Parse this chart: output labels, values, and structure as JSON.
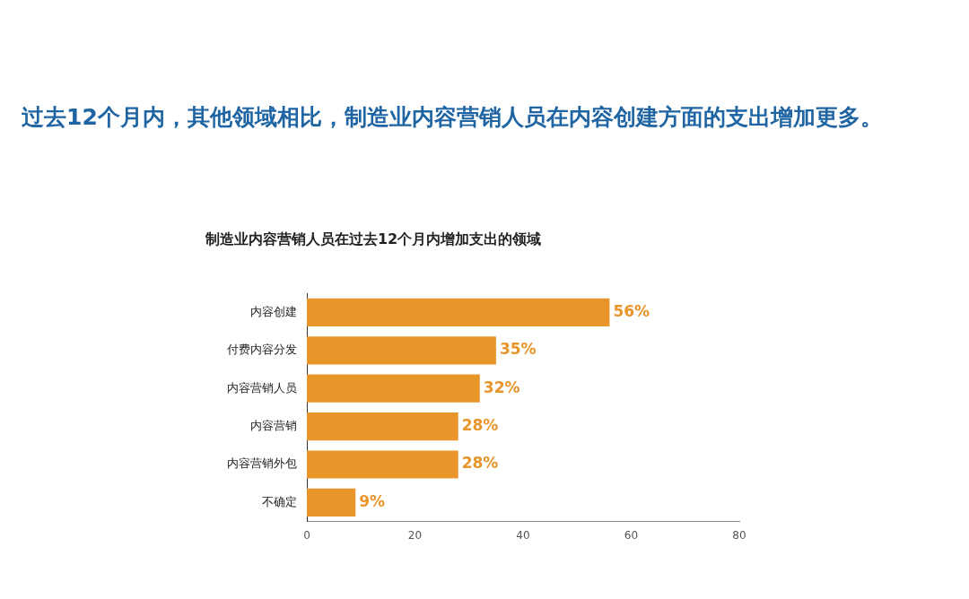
{
  "chart_data": {
    "type": "bar",
    "orientation": "horizontal",
    "title": "制造业内容营销人员在过去12个月内增加支出的领域",
    "subtitle": "过去12个月内，其他领域相比，制造业内容营销人员在内容创建方面的支出增加更多。",
    "categories": [
      "内容创建",
      "付费内容分发",
      "内容营销人员",
      "内容营销",
      "内容营销外包",
      "不确定"
    ],
    "values": [
      56,
      35,
      32,
      28,
      28,
      9
    ],
    "color": "#e8952a",
    "value_labels": [
      "56%",
      "35%",
      "32%",
      "28%",
      "28%",
      "9%"
    ],
    "xlim": [
      0,
      80
    ],
    "xticks": [
      0,
      20,
      40,
      60,
      80
    ],
    "grid": false,
    "legend": false
  }
}
